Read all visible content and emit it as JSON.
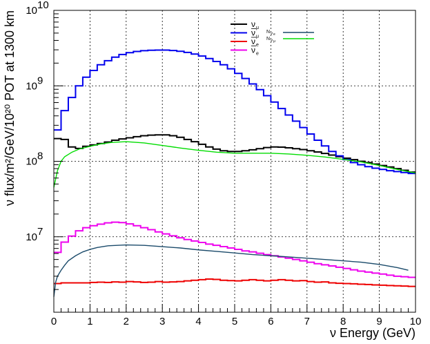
{
  "chart_data": {
    "type": "line",
    "title": "",
    "xlabel": "ν Energy (GeV)",
    "ylabel": "ν flux/m²/GeV/10²⁰ POT at 1300 km",
    "xlim": [
      0,
      10
    ],
    "ylim": [
      1000000,
      10000000000
    ],
    "ylog": true,
    "grid": true,
    "legend_position": "top-right",
    "x_ticks": [
      "0",
      "1",
      "2",
      "3",
      "4",
      "5",
      "6",
      "7",
      "8",
      "9",
      "10"
    ],
    "y_ticks": [
      {
        "base": "10",
        "exp": "7",
        "value": 10000000
      },
      {
        "base": "10",
        "exp": "8",
        "value": 100000000
      },
      {
        "base": "10",
        "exp": "9",
        "value": 1000000000
      },
      {
        "base": "10",
        "exp": "10",
        "value": 10000000000
      }
    ],
    "legend": {
      "entries": [
        {
          "label": "ν",
          "sub": "μ",
          "bar": false,
          "color": "#000000"
        },
        {
          "label": "ν",
          "sub": "μ",
          "bar": true,
          "color": "#0000ee"
        },
        {
          "label": "ν",
          "sub": "e",
          "bar": true,
          "color": "#ee0000"
        },
        {
          "label": "ν",
          "sub": "e",
          "bar": true,
          "color": "#ee00ee"
        }
      ],
      "ratio_entries": [
        {
          "num": "N",
          "num_sub": "ν",
          "num_subsub": "e",
          "den": "N",
          "den_sub": "ν",
          "den_subsub": "μ",
          "color": "#1a4a6a"
        },
        {
          "color": "#00dd00"
        }
      ]
    },
    "series": [
      {
        "name": "ν_μ",
        "style": "step",
        "color": "#000000",
        "bin_width": 0.2,
        "x_start": 0,
        "values": [
          200000000,
          195000000,
          155000000,
          148000000,
          158000000,
          165000000,
          172000000,
          180000000,
          190000000,
          198000000,
          205000000,
          212000000,
          218000000,
          222000000,
          224000000,
          224000000,
          218000000,
          208000000,
          195000000,
          182000000,
          168000000,
          155000000,
          145000000,
          138000000,
          135000000,
          135000000,
          138000000,
          142000000,
          147000000,
          152000000,
          155000000,
          154000000,
          151000000,
          147000000,
          143000000,
          138000000,
          133000000,
          127000000,
          121000000,
          115000000,
          110000000,
          105000000,
          100000000,
          96000000,
          92000000,
          88000000,
          84000000,
          80000000,
          76000000,
          72000000
        ]
      },
      {
        "name": "ν̄_μ",
        "style": "step",
        "color": "#0000ee",
        "bin_width": 0.2,
        "x_start": 0,
        "values": [
          260000000,
          470000000,
          700000000,
          1000000000,
          1300000000,
          1600000000,
          1900000000,
          2150000000,
          2400000000,
          2600000000,
          2750000000,
          2850000000,
          2920000000,
          2960000000,
          2980000000,
          2980000000,
          2940000000,
          2870000000,
          2770000000,
          2640000000,
          2480000000,
          2300000000,
          2100000000,
          1900000000,
          1680000000,
          1460000000,
          1250000000,
          1060000000,
          890000000,
          740000000,
          610000000,
          500000000,
          410000000,
          340000000,
          280000000,
          230000000,
          190000000,
          160000000,
          135000000,
          118000000,
          105000000,
          96000000,
          90000000,
          85000000,
          81000000,
          78000000,
          75000000,
          73000000,
          71000000,
          69000000
        ]
      },
      {
        "name": "ν̄_e",
        "style": "step",
        "color": "#ee0000",
        "bin_width": 0.2,
        "x_start": 0,
        "values": [
          2400000,
          2450000,
          2450000,
          2450000,
          2450000,
          2480000,
          2500000,
          2480000,
          2520000,
          2500000,
          2550000,
          2520000,
          2480000,
          2500000,
          2550000,
          2500000,
          2520000,
          2550000,
          2600000,
          2650000,
          2700000,
          2750000,
          2720000,
          2650000,
          2620000,
          2600000,
          2650000,
          2700000,
          2650000,
          2600000,
          2650000,
          2700000,
          2650000,
          2600000,
          2620000,
          2550000,
          2500000,
          2520000,
          2450000,
          2420000,
          2400000,
          2380000,
          2350000,
          2330000,
          2300000,
          2280000,
          2260000,
          2240000,
          2220000,
          2200000
        ]
      },
      {
        "name": "ν_e",
        "style": "step",
        "color": "#ee00ee",
        "bin_width": 0.2,
        "x_start": 0,
        "values": [
          6200000,
          8500000,
          10200000,
          12000000,
          13200000,
          14000000,
          14700000,
          15300000,
          15600000,
          15400000,
          14800000,
          14000000,
          13200000,
          12400000,
          11600000,
          10900000,
          10300000,
          9700000,
          9200000,
          8800000,
          8400000,
          8000000,
          7700000,
          7400000,
          7100000,
          6800000,
          6500000,
          6300000,
          6050000,
          5800000,
          5600000,
          5400000,
          5200000,
          5000000,
          4800000,
          4600000,
          4400000,
          4250000,
          4100000,
          3950000,
          3800000,
          3650000,
          3500000,
          3400000,
          3300000,
          3200000,
          3100000,
          3000000,
          2950000,
          2900000
        ]
      },
      {
        "name": "N_νe/N_νμ",
        "style": "smooth",
        "color": "#1a4a6a",
        "x": [
          0,
          0.05,
          0.1,
          0.2,
          0.3,
          0.4,
          0.6,
          0.8,
          1,
          1.2,
          1.5,
          2,
          2.5,
          3,
          3.5,
          4,
          4.5,
          5,
          5.5,
          6,
          6.5,
          7,
          7.5,
          8,
          8.5,
          9,
          9.5,
          9.8
        ],
        "y": [
          1600000,
          2500000,
          3000000,
          3600000,
          4200000,
          4800000,
          5600000,
          6300000,
          6800000,
          7200000,
          7600000,
          7800000,
          7700000,
          7400000,
          7100000,
          6700000,
          6400000,
          6100000,
          5800000,
          5600000,
          5400000,
          5200000,
          5000000,
          4800000,
          4600000,
          4300000,
          3900000,
          3600000
        ]
      },
      {
        "name": "green ratio",
        "style": "smooth",
        "color": "#00dd00",
        "x": [
          0,
          0.1,
          0.2,
          0.3,
          0.5,
          0.7,
          1,
          1.3,
          1.6,
          2,
          2.5,
          3,
          3.5,
          4,
          4.5,
          5,
          5.5,
          6,
          6.5,
          7,
          7.5,
          8,
          8.5,
          9,
          9.5,
          10
        ],
        "y": [
          45000000,
          75000000,
          100000000,
          115000000,
          132000000,
          145000000,
          158000000,
          170000000,
          178000000,
          182000000,
          175000000,
          162000000,
          150000000,
          140000000,
          132000000,
          128000000,
          128000000,
          128000000,
          125000000,
          120000000,
          114000000,
          106000000,
          98000000,
          88000000,
          78000000,
          70000000
        ]
      }
    ]
  }
}
